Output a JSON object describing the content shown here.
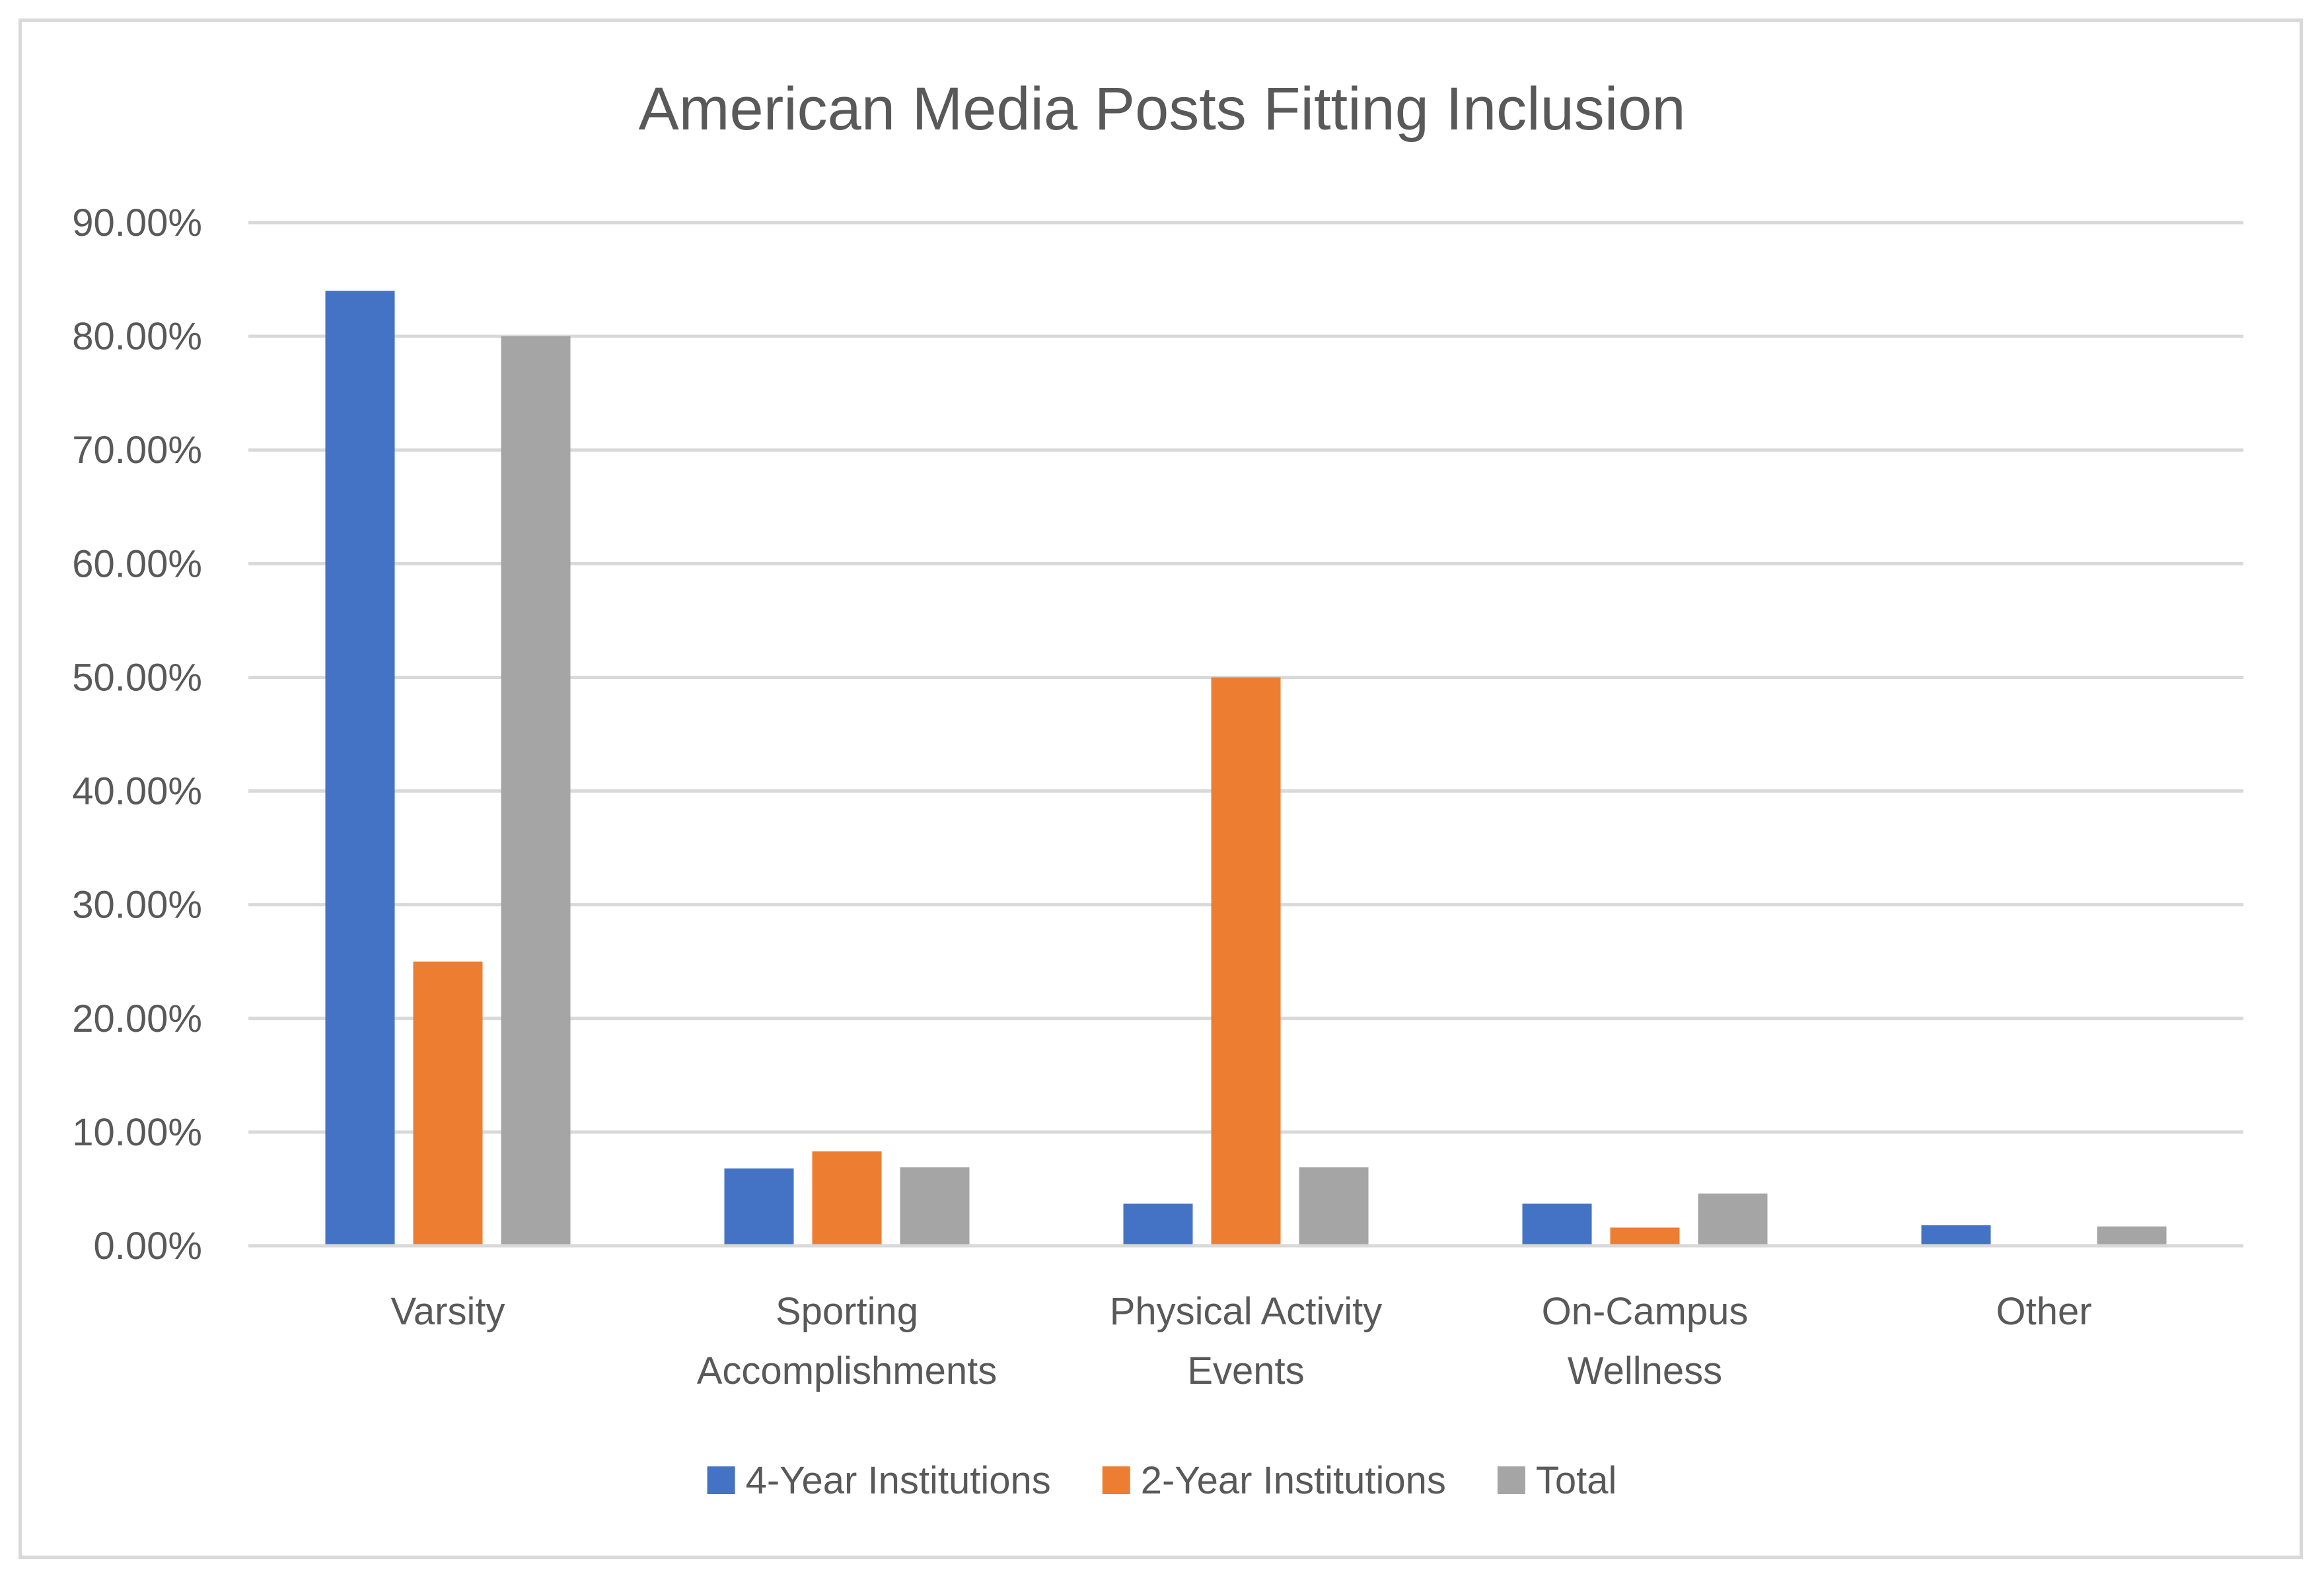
{
  "chart_data": {
    "type": "bar",
    "title": "American Media Posts Fitting Inclusion",
    "xlabel": "",
    "ylabel": "",
    "ylim": [
      0,
      90
    ],
    "y_ticks": [
      0,
      10,
      20,
      30,
      40,
      50,
      60,
      70,
      80,
      90
    ],
    "y_tick_labels": [
      "0.00%",
      "10.00%",
      "20.00%",
      "30.00%",
      "40.00%",
      "50.00%",
      "60.00%",
      "70.00%",
      "80.00%",
      "90.00%"
    ],
    "grid": true,
    "legend_position": "bottom",
    "categories": [
      [
        "Varsity"
      ],
      [
        "Sporting",
        "Accomplishments"
      ],
      [
        "Physical Activity",
        "Events"
      ],
      [
        "On-Campus",
        "Wellness"
      ],
      [
        "Other"
      ]
    ],
    "series": [
      {
        "name": "4-Year Institutions",
        "color": "#4472c4",
        "values": [
          84.0,
          6.8,
          3.7,
          3.7,
          1.8
        ]
      },
      {
        "name": "2-Year Institutions",
        "color": "#ed7d31",
        "values": [
          25.0,
          8.3,
          50.0,
          1.6,
          0.0
        ]
      },
      {
        "name": "Total",
        "color": "#a5a5a5",
        "values": [
          80.0,
          6.9,
          6.9,
          4.6,
          1.7
        ]
      }
    ]
  },
  "colors": {
    "gridline": "#d9d9d9",
    "axis": "#d9d9d9",
    "text": "#595959",
    "frame": "#d9d9d9"
  }
}
